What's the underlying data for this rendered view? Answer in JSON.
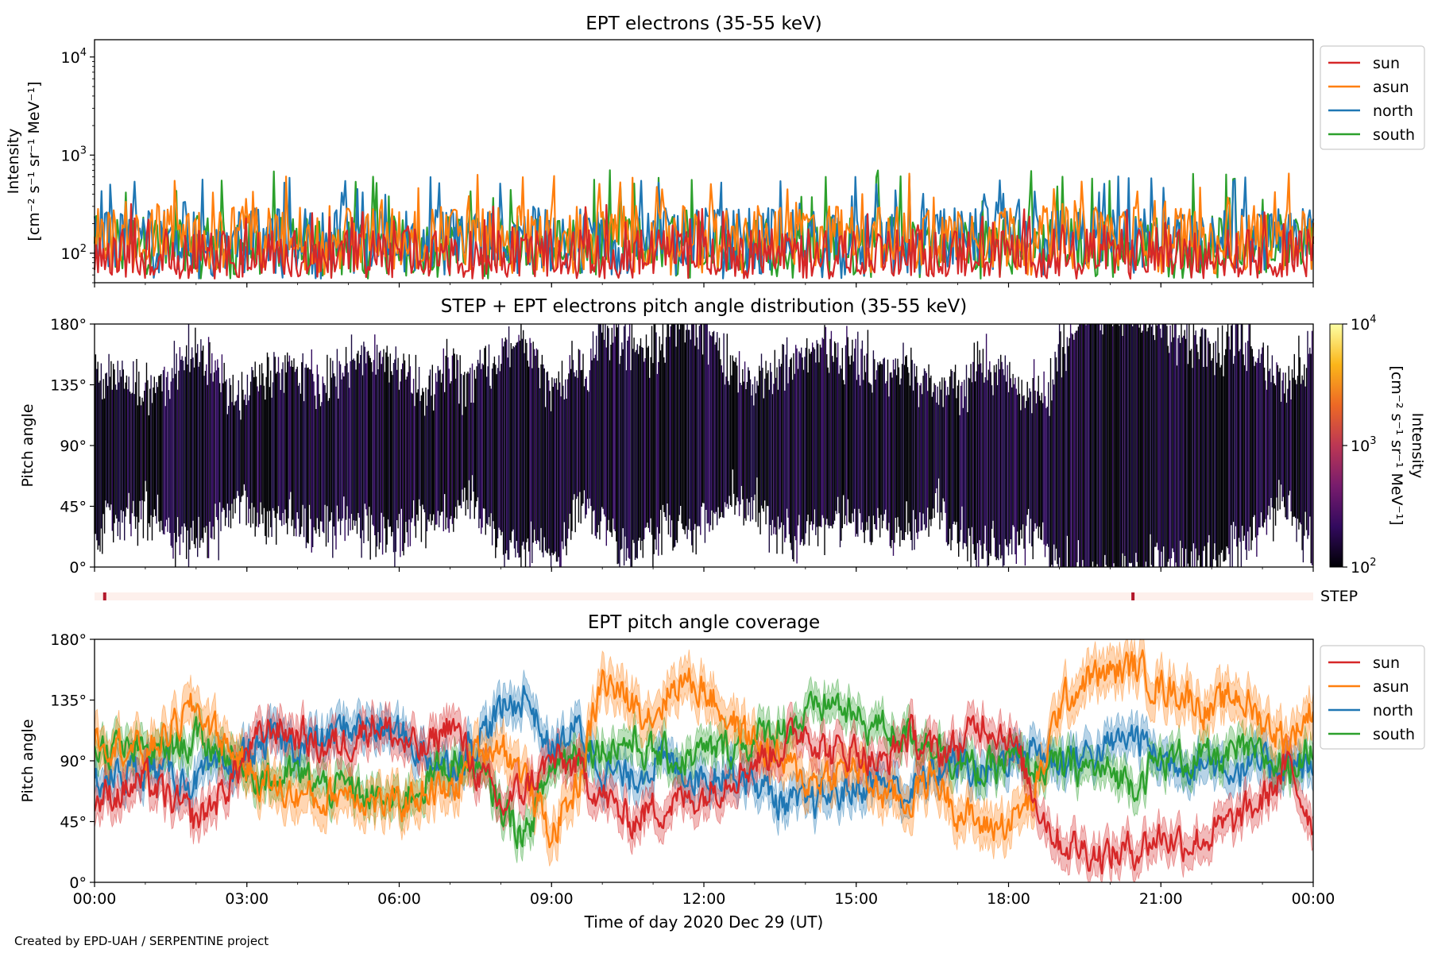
{
  "colors": {
    "sun": "#d62728",
    "asun": "#ff7f0e",
    "north": "#1f77b4",
    "south": "#2ca02c",
    "step_bar_bg": "#fdf0ec",
    "step_mark": "#b2182b"
  },
  "footer": "Created by EPD-UAH / SERPENTINE project",
  "chart_data": [
    {
      "type": "line",
      "title": "EPT electrons (35-55 keV)",
      "ylabel": "Intensity",
      "yunit": "[cm⁻² s⁻¹ sr⁻¹ MeV⁻¹]",
      "yscale": "log",
      "ylim": [
        50,
        15000
      ],
      "yticks": [
        {
          "value": 100,
          "base": "10",
          "exp": "2"
        },
        {
          "value": 1000,
          "base": "10",
          "exp": "3"
        },
        {
          "value": 10000,
          "base": "10",
          "exp": "4"
        }
      ],
      "xlim": [
        "2020-12-29 00:00",
        "2020-12-30 00:00"
      ],
      "legend": {
        "position": "outside-right",
        "entries": [
          "sun",
          "asun",
          "north",
          "south"
        ]
      },
      "series": [
        {
          "name": "sun",
          "baseline": 110,
          "min": 55,
          "max": 320
        },
        {
          "name": "asun",
          "baseline": 190,
          "min": 60,
          "max": 680
        },
        {
          "name": "north",
          "baseline": 180,
          "min": 55,
          "max": 620
        },
        {
          "name": "south",
          "baseline": 150,
          "min": 55,
          "max": 720
        }
      ]
    },
    {
      "type": "heatmap",
      "title": "STEP + EPT electrons pitch angle distribution (35-55 keV)",
      "ylabel": "Pitch angle",
      "yticks": [
        "0°",
        "45°",
        "90°",
        "135°",
        "180°"
      ],
      "ylim": [
        0,
        180
      ],
      "xlim": [
        "2020-12-29 00:00",
        "2020-12-30 00:00"
      ],
      "colorbar": {
        "label": "Intensity",
        "unit": "[cm⁻² s⁻¹ sr⁻¹ MeV⁻¹]",
        "scale": "log",
        "range": [
          100,
          10000
        ],
        "ticks": [
          {
            "value": 100,
            "base": "10",
            "exp": "2"
          },
          {
            "value": 1000,
            "base": "10",
            "exp": "3"
          },
          {
            "value": 10000,
            "base": "10",
            "exp": "4"
          }
        ],
        "colormap": [
          "#000004",
          "#320a5e",
          "#781c6d",
          "#bc3754",
          "#ed6925",
          "#fbb61a",
          "#fcffa4"
        ]
      },
      "typical_intensity": 150
    },
    {
      "type": "bar",
      "label": "STEP",
      "marks_hours": [
        0.2,
        20.45
      ]
    },
    {
      "type": "area",
      "title": "EPT pitch angle coverage",
      "ylabel": "Pitch angle",
      "xlabel": "Time of day 2020 Dec 29 (UT)",
      "xticks": [
        "00:00",
        "03:00",
        "06:00",
        "09:00",
        "12:00",
        "15:00",
        "18:00",
        "21:00",
        "00:00"
      ],
      "yticks": [
        "0°",
        "45°",
        "90°",
        "135°",
        "180°"
      ],
      "ylim": [
        0,
        180
      ],
      "xlim_hours": [
        0,
        24
      ],
      "legend": {
        "position": "outside-right",
        "entries": [
          "sun",
          "asun",
          "north",
          "south"
        ]
      },
      "series": [
        {
          "name": "sun",
          "hours": [
            0,
            1,
            2,
            2.5,
            3,
            3.5,
            4,
            4.5,
            5,
            5.5,
            6,
            6.5,
            7,
            7.5,
            8,
            8.5,
            9,
            9.5,
            10,
            10.5,
            11,
            11.5,
            12,
            12.5,
            13,
            13.5,
            14,
            14.5,
            15,
            15.5,
            16,
            16.5,
            17,
            17.5,
            18,
            18.5,
            19,
            19.5,
            20,
            20.5,
            21,
            21.5,
            22,
            22.5,
            23,
            23.5,
            24
          ],
          "values": [
            60,
            75,
            45,
            65,
            95,
            115,
            110,
            100,
            105,
            120,
            105,
            95,
            120,
            85,
            55,
            70,
            90,
            85,
            65,
            45,
            55,
            60,
            65,
            80,
            90,
            100,
            115,
            95,
            100,
            85,
            110,
            95,
            100,
            120,
            110,
            65,
            30,
            25,
            20,
            25,
            35,
            30,
            35,
            45,
            60,
            85,
            45
          ],
          "spread": 12
        },
        {
          "name": "asun",
          "hours": [
            0,
            1,
            2,
            2.5,
            3,
            3.5,
            4,
            4.5,
            5,
            5.5,
            6,
            6.5,
            7,
            7.5,
            8,
            8.5,
            9,
            9.5,
            10,
            10.5,
            11,
            11.5,
            12,
            12.5,
            13,
            13.5,
            14,
            14.5,
            15,
            15.5,
            16,
            16.5,
            17,
            17.5,
            18,
            18.5,
            19,
            19.5,
            20,
            20.5,
            21,
            21.5,
            22,
            22.5,
            23,
            23.5,
            24
          ],
          "values": [
            110,
            95,
            130,
            105,
            85,
            70,
            65,
            60,
            70,
            60,
            55,
            70,
            65,
            95,
            105,
            75,
            35,
            70,
            150,
            135,
            125,
            150,
            145,
            120,
            105,
            90,
            75,
            80,
            85,
            65,
            60,
            80,
            55,
            40,
            45,
            60,
            130,
            150,
            155,
            160,
            145,
            140,
            125,
            140,
            120,
            105,
            130
          ],
          "spread": 14
        },
        {
          "name": "north",
          "hours": [
            0,
            1,
            2,
            2.5,
            3,
            3.5,
            4,
            4.5,
            5,
            5.5,
            6,
            6.5,
            7,
            7.5,
            8,
            8.5,
            9,
            9.5,
            10,
            10.5,
            11,
            11.5,
            12,
            12.5,
            13,
            13.5,
            14,
            14.5,
            15,
            15.5,
            16,
            16.5,
            17,
            17.5,
            18,
            18.5,
            19,
            19.5,
            20,
            20.5,
            21,
            21.5,
            22,
            22.5,
            23,
            23.5,
            24
          ],
          "values": [
            75,
            85,
            75,
            80,
            95,
            105,
            100,
            105,
            115,
            115,
            110,
            95,
            85,
            105,
            125,
            140,
            95,
            115,
            85,
            75,
            90,
            85,
            80,
            85,
            75,
            60,
            55,
            65,
            70,
            75,
            65,
            80,
            90,
            80,
            95,
            100,
            90,
            95,
            100,
            110,
            90,
            90,
            88,
            85,
            85,
            90,
            80
          ],
          "spread": 12
        },
        {
          "name": "south",
          "hours": [
            0,
            1,
            2,
            2.5,
            3,
            3.5,
            4,
            4.5,
            5,
            5.5,
            6,
            6.5,
            7,
            7.5,
            8,
            8.5,
            9,
            9.5,
            10,
            10.5,
            11,
            11.5,
            12,
            12.5,
            13,
            13.5,
            14,
            14.5,
            15,
            15.5,
            16,
            16.5,
            17,
            17.5,
            18,
            18.5,
            19,
            19.5,
            20,
            20.5,
            21,
            21.5,
            22,
            22.5,
            23,
            23.5,
            24
          ],
          "values": [
            100,
            95,
            105,
            100,
            85,
            75,
            80,
            70,
            70,
            60,
            60,
            75,
            90,
            85,
            55,
            35,
            85,
            100,
            100,
            105,
            95,
            90,
            95,
            100,
            105,
            115,
            120,
            135,
            120,
            115,
            110,
            105,
            90,
            80,
            90,
            85,
            85,
            85,
            80,
            75,
            90,
            92,
            90,
            95,
            92,
            85,
            100
          ],
          "spread": 11
        }
      ]
    }
  ]
}
